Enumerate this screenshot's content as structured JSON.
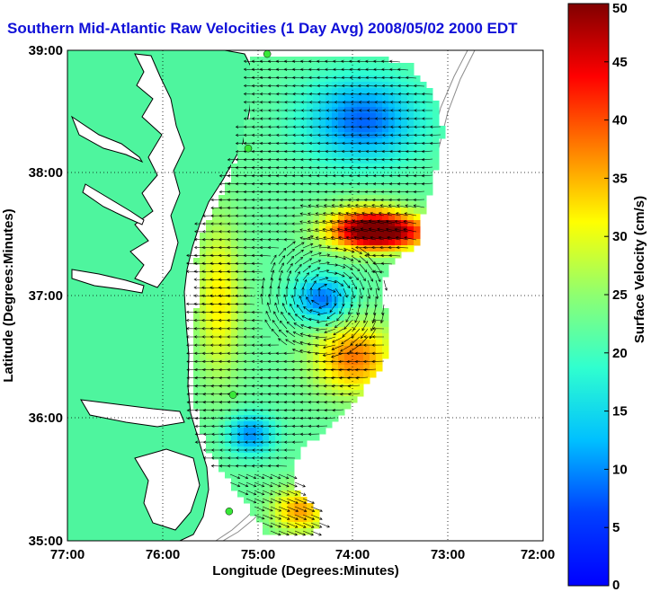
{
  "title": "Southern Mid-Atlantic Raw Velocities (1 Day Avg) 2008/05/02 2000 EDT",
  "map": {
    "x_ticks": [
      "77:00",
      "76:00",
      "75:00",
      "74:00",
      "73:00",
      "72:00"
    ],
    "y_ticks": [
      "39:00",
      "38:00",
      "37:00",
      "36:00",
      "35:00"
    ],
    "x_label": "Longitude (Degrees:Minutes)",
    "y_label": "Latitude (Degrees:Minutes)",
    "colors": {
      "land": "#4ef59e",
      "water": "#ffffff",
      "vector": "#000000",
      "site": "#38e838",
      "isobath": "#8c8c8c"
    }
  },
  "colorbar": {
    "label": "Surface Velocity (cm/s)",
    "ticks": [
      "50",
      "45",
      "40",
      "35",
      "30",
      "25",
      "20",
      "15",
      "10",
      "5",
      "0"
    ],
    "min": 0,
    "max": 50
  },
  "chart_data": {
    "type": "heatmap",
    "title": "Southern Mid-Atlantic Raw Velocities (1 Day Avg) 2008/05/02 2000 EDT",
    "xlabel": "Longitude (Degrees:Minutes)",
    "ylabel": "Latitude (Degrees:Minutes)",
    "xlim": [
      -77,
      -72
    ],
    "ylim": [
      35,
      39
    ],
    "colorbar_label": "Surface Velocity (cm/s)",
    "colorbar_range": [
      0,
      50
    ],
    "grid": true,
    "hf_radar_sites": [
      {
        "lon": -74.9,
        "lat": 38.97
      },
      {
        "lon": -75.1,
        "lat": 38.2
      },
      {
        "lon": -75.26,
        "lat": 36.19
      },
      {
        "lon": -75.3,
        "lat": 35.24
      }
    ]
  }
}
